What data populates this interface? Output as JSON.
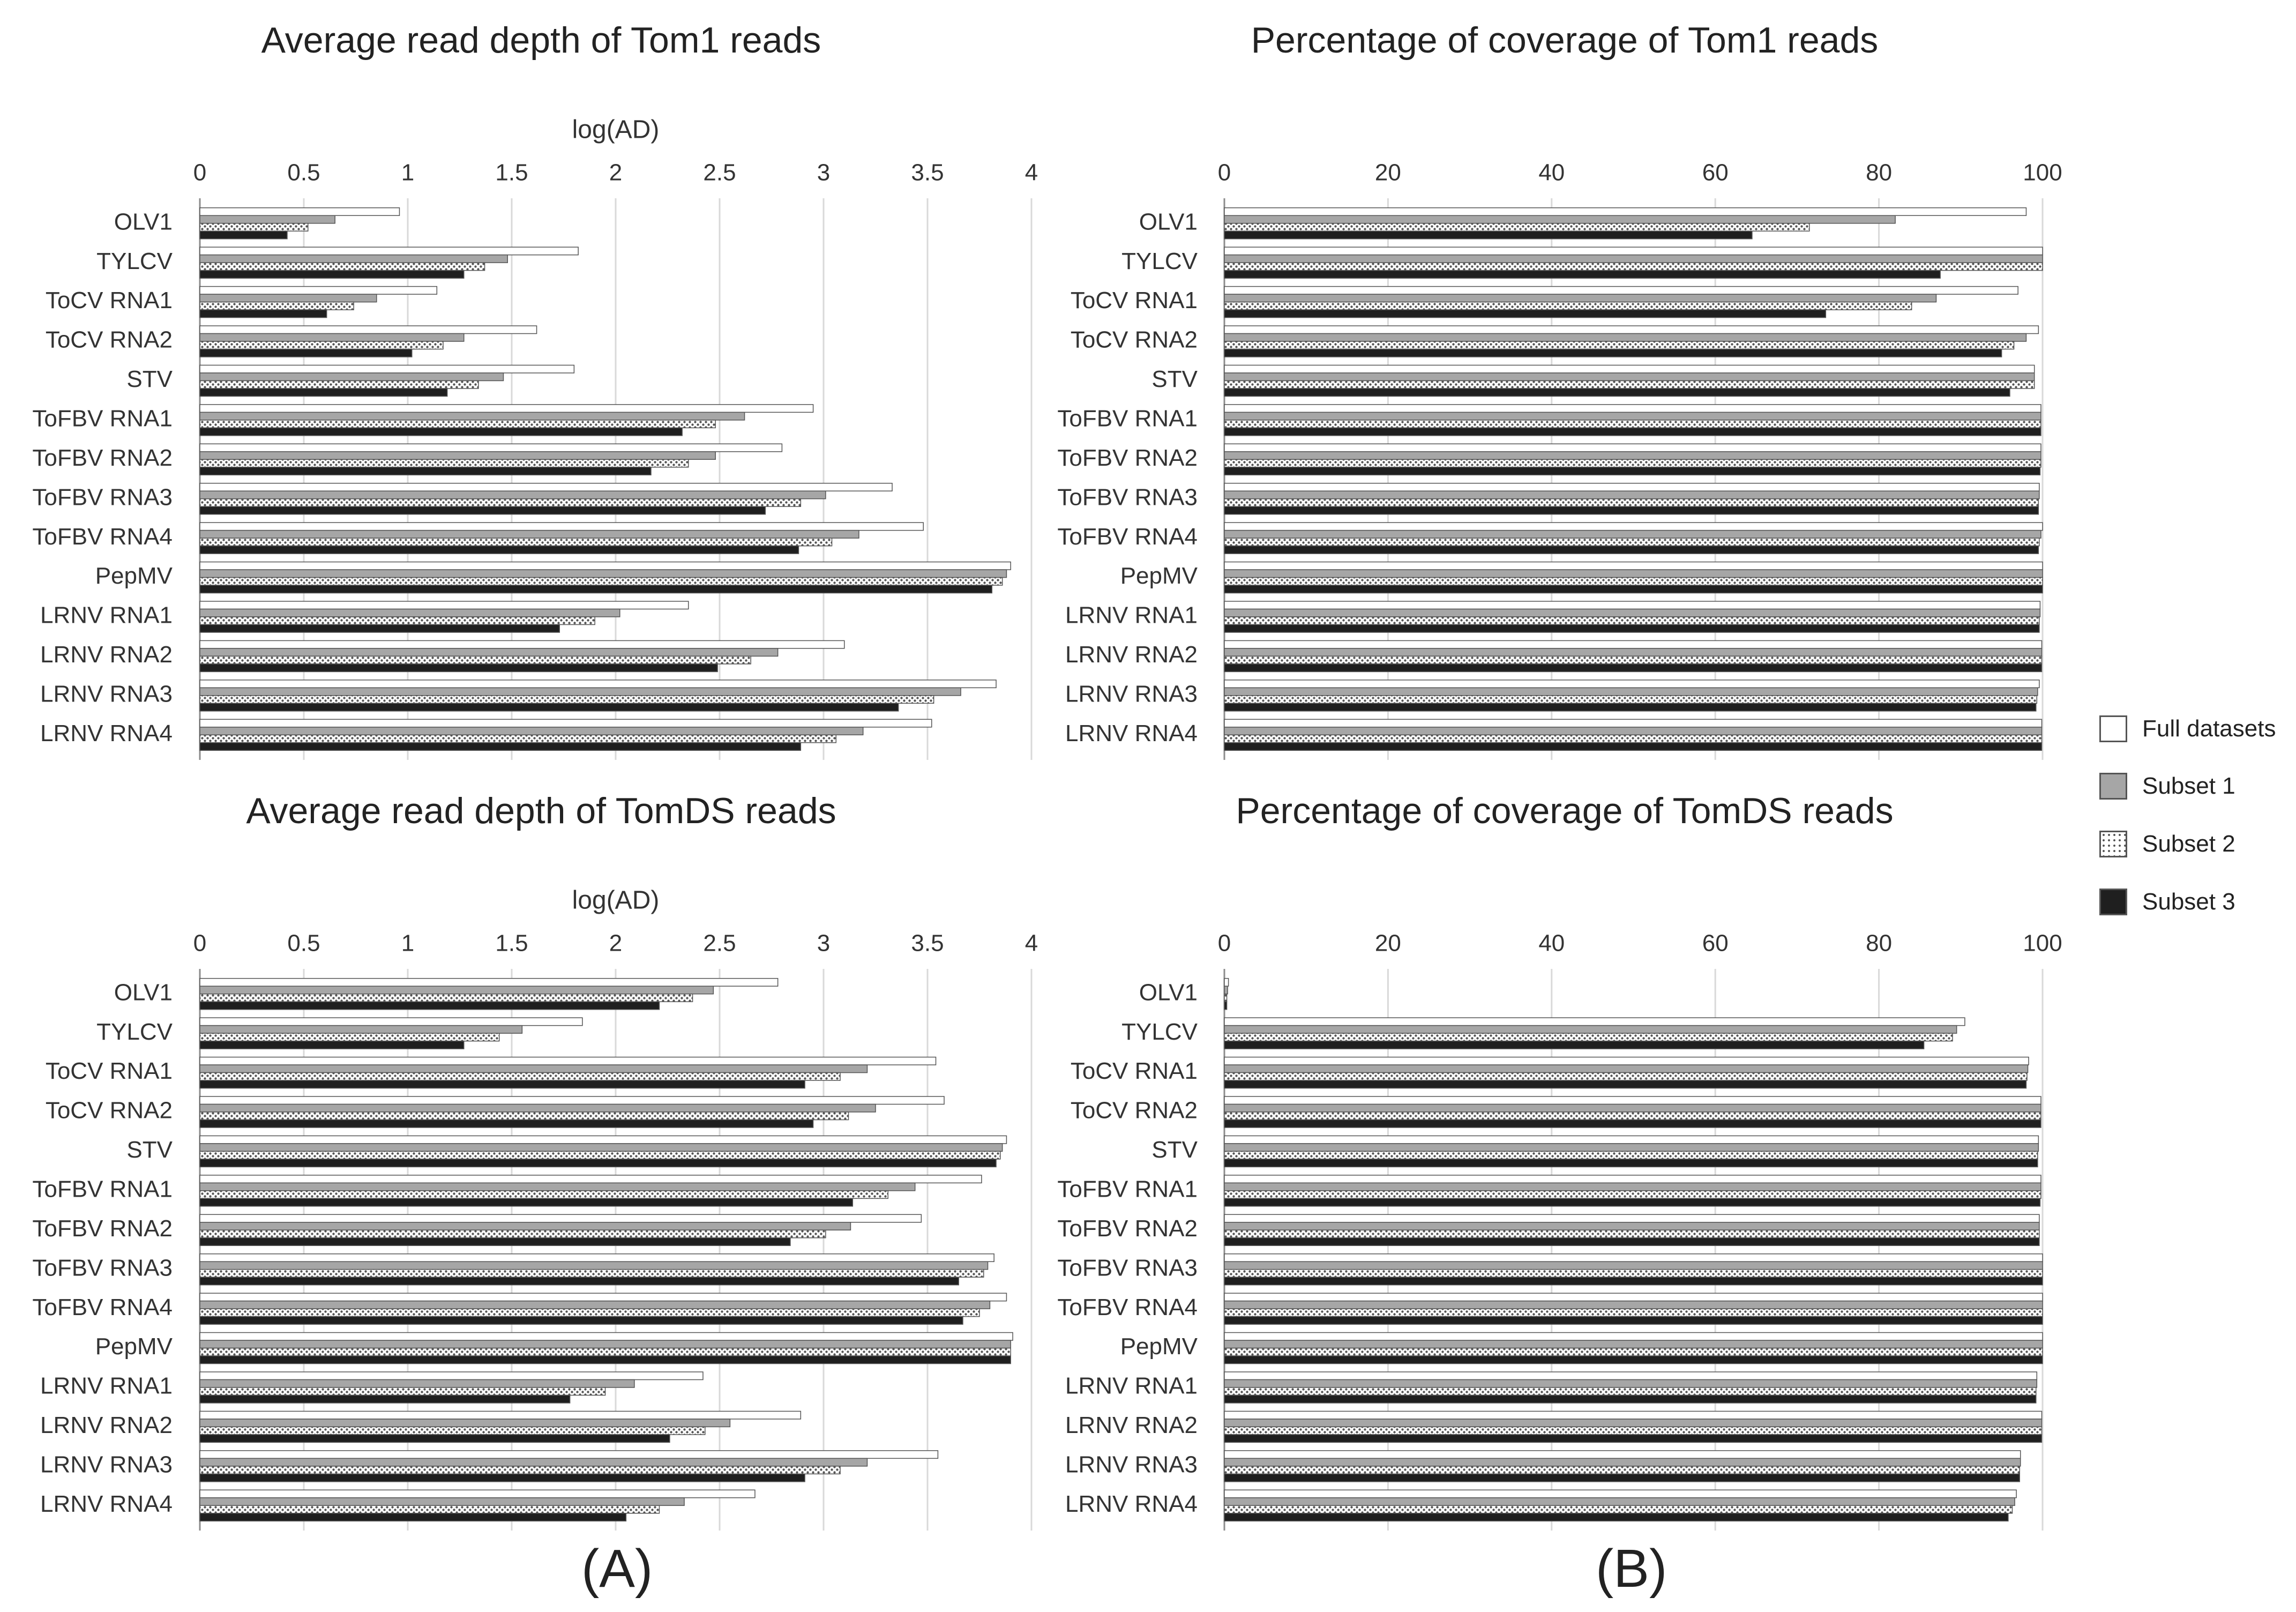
{
  "colors": {
    "full": "#ffffff",
    "subset1": "#a6a6a6",
    "subset2": "#d9d9d9",
    "subset3": "#1f1f1f",
    "outline": "#555555",
    "grid": "#d9d9d9"
  },
  "legend": [
    "Full datasets",
    "Subset 1",
    "Subset 2",
    "Subset 3"
  ],
  "panel_labels": {
    "a": "(A)",
    "b": "(B)"
  },
  "chart_data": [
    {
      "type": "bar",
      "orientation": "horizontal",
      "title": "Average read depth of Tom1 reads",
      "xlabel": "log(AD)",
      "xlim": [
        0,
        4
      ],
      "ticks": [
        "0",
        "0.5",
        "1",
        "1.5",
        "2",
        "2.5",
        "3",
        "3.5",
        "4"
      ],
      "tick_values": [
        0,
        0.5,
        1,
        1.5,
        2,
        2.5,
        3,
        3.5,
        4
      ],
      "categories": [
        "OLV1",
        "TYLCV",
        "ToCV RNA1",
        "ToCV RNA2",
        "STV",
        "ToFBV RNA1",
        "ToFBV RNA2",
        "ToFBV RNA3",
        "ToFBV RNA4",
        "PepMV",
        "LRNV RNA1",
        "LRNV RNA2",
        "LRNV RNA3",
        "LRNV RNA4"
      ],
      "series": [
        {
          "name": "Full datasets",
          "values": [
            0.96,
            1.82,
            1.14,
            1.62,
            1.8,
            2.95,
            2.8,
            3.33,
            3.48,
            3.9,
            2.35,
            3.1,
            3.83,
            3.52
          ]
        },
        {
          "name": "Subset 1",
          "values": [
            0.65,
            1.48,
            0.85,
            1.27,
            1.46,
            2.62,
            2.48,
            3.01,
            3.17,
            3.88,
            2.02,
            2.78,
            3.66,
            3.19
          ]
        },
        {
          "name": "Subset 2",
          "values": [
            0.52,
            1.37,
            0.74,
            1.17,
            1.34,
            2.48,
            2.35,
            2.89,
            3.04,
            3.86,
            1.9,
            2.65,
            3.53,
            3.06
          ]
        },
        {
          "name": "Subset 3",
          "values": [
            0.42,
            1.27,
            0.61,
            1.02,
            1.19,
            2.32,
            2.17,
            2.72,
            2.88,
            3.81,
            1.73,
            2.49,
            3.36,
            2.89
          ]
        }
      ]
    },
    {
      "type": "bar",
      "orientation": "horizontal",
      "title": "Percentage of coverage of Tom1 reads",
      "xlabel": "",
      "xlim": [
        0,
        100
      ],
      "ticks": [
        "0",
        "20",
        "40",
        "60",
        "80",
        "100"
      ],
      "tick_values": [
        0,
        20,
        40,
        60,
        80,
        100
      ],
      "categories": [
        "OLV1",
        "TYLCV",
        "ToCV RNA1",
        "ToCV RNA2",
        "STV",
        "ToFBV RNA1",
        "ToFBV RNA2",
        "ToFBV RNA3",
        "ToFBV RNA4",
        "PepMV",
        "LRNV RNA1",
        "LRNV RNA2",
        "LRNV RNA3",
        "LRNV RNA4"
      ],
      "series": [
        {
          "name": "Full datasets",
          "values": [
            98,
            100,
            97,
            99.5,
            99,
            99.8,
            99.8,
            99.6,
            100,
            100,
            99.7,
            99.9,
            99.6,
            99.9
          ]
        },
        {
          "name": "Subset 1",
          "values": [
            82,
            100,
            87,
            98,
            99,
            99.8,
            99.8,
            99.6,
            99.8,
            100,
            99.7,
            99.9,
            99.4,
            99.9
          ]
        },
        {
          "name": "Subset 2",
          "values": [
            71.5,
            100,
            84,
            96.5,
            99,
            99.8,
            99.8,
            99.5,
            99.6,
            100,
            99.6,
            99.9,
            99.3,
            99.9
          ]
        },
        {
          "name": "Subset 3",
          "values": [
            64.5,
            87.5,
            73.5,
            95,
            96,
            99.8,
            99.7,
            99.5,
            99.5,
            100,
            99.6,
            99.9,
            99.2,
            99.9
          ]
        }
      ]
    },
    {
      "type": "bar",
      "orientation": "horizontal",
      "title": "Average read depth of TomDS reads",
      "xlabel": "log(AD)",
      "xlim": [
        0,
        4
      ],
      "ticks": [
        "0",
        "0.5",
        "1",
        "1.5",
        "2",
        "2.5",
        "3",
        "3.5",
        "4"
      ],
      "tick_values": [
        0,
        0.5,
        1,
        1.5,
        2,
        2.5,
        3,
        3.5,
        4
      ],
      "categories": [
        "OLV1",
        "TYLCV",
        "ToCV RNA1",
        "ToCV RNA2",
        "STV",
        "ToFBV RNA1",
        "ToFBV RNA2",
        "ToFBV RNA3",
        "ToFBV RNA4",
        "PepMV",
        "LRNV RNA1",
        "LRNV RNA2",
        "LRNV RNA3",
        "LRNV RNA4"
      ],
      "series": [
        {
          "name": "Full datasets",
          "values": [
            2.78,
            1.84,
            3.54,
            3.58,
            3.88,
            3.76,
            3.47,
            3.82,
            3.88,
            3.91,
            2.42,
            2.89,
            3.55,
            2.67
          ]
        },
        {
          "name": "Subset 1",
          "values": [
            2.47,
            1.55,
            3.21,
            3.25,
            3.86,
            3.44,
            3.13,
            3.79,
            3.8,
            3.9,
            2.09,
            2.55,
            3.21,
            2.33
          ]
        },
        {
          "name": "Subset 2",
          "values": [
            2.37,
            1.44,
            3.08,
            3.12,
            3.85,
            3.31,
            3.01,
            3.77,
            3.75,
            3.9,
            1.95,
            2.43,
            3.08,
            2.21
          ]
        },
        {
          "name": "Subset 3",
          "values": [
            2.21,
            1.27,
            2.91,
            2.95,
            3.83,
            3.14,
            2.84,
            3.65,
            3.67,
            3.9,
            1.78,
            2.26,
            2.91,
            2.05
          ]
        }
      ]
    },
    {
      "type": "bar",
      "orientation": "horizontal",
      "title": "Percentage of coverage of TomDS reads",
      "xlabel": "",
      "xlim": [
        0,
        100
      ],
      "ticks": [
        "0",
        "20",
        "40",
        "60",
        "80",
        "100"
      ],
      "tick_values": [
        0,
        20,
        40,
        60,
        80,
        100
      ],
      "categories": [
        "OLV1",
        "TYLCV",
        "ToCV RNA1",
        "ToCV RNA2",
        "STV",
        "ToFBV RNA1",
        "ToFBV RNA2",
        "ToFBV RNA3",
        "ToFBV RNA4",
        "PepMV",
        "LRNV RNA1",
        "LRNV RNA2",
        "LRNV RNA3",
        "LRNV RNA4"
      ],
      "series": [
        {
          "name": "Full datasets",
          "values": [
            0.5,
            90.5,
            98.3,
            99.8,
            99.5,
            99.8,
            99.6,
            100,
            100,
            100,
            99.3,
            99.9,
            97.3,
            96.8
          ]
        },
        {
          "name": "Subset 1",
          "values": [
            0.4,
            89.5,
            98.2,
            99.8,
            99.5,
            99.8,
            99.6,
            100,
            100,
            100,
            99.3,
            99.9,
            97.3,
            96.6
          ]
        },
        {
          "name": "Subset 2",
          "values": [
            0.3,
            89,
            98.1,
            99.8,
            99.4,
            99.8,
            99.6,
            100,
            100,
            100,
            99.2,
            99.9,
            97.2,
            96.3
          ]
        },
        {
          "name": "Subset 3",
          "values": [
            0.3,
            85.5,
            98,
            99.8,
            99.4,
            99.7,
            99.6,
            100,
            100,
            100,
            99.2,
            99.9,
            97.2,
            95.8
          ]
        }
      ]
    }
  ]
}
